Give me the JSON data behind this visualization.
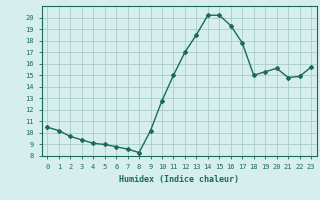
{
  "x": [
    0,
    1,
    2,
    3,
    4,
    5,
    6,
    7,
    8,
    9,
    10,
    11,
    12,
    13,
    14,
    15,
    16,
    17,
    18,
    19,
    20,
    21,
    22,
    23
  ],
  "y": [
    10.5,
    10.2,
    9.7,
    9.4,
    9.1,
    9.0,
    8.8,
    8.6,
    8.3,
    10.2,
    12.8,
    15.0,
    17.0,
    18.5,
    20.2,
    20.2,
    19.3,
    17.8,
    15.0,
    15.3,
    15.6,
    14.8,
    14.9,
    15.7
  ],
  "line_color": "#1a6b5a",
  "marker": "D",
  "marker_size": 2,
  "bg_color": "#d6eeee",
  "grid_color": "#aacccc",
  "xlabel": "Humidex (Indice chaleur)",
  "ylabel": "",
  "ylim": [
    8,
    21
  ],
  "xlim": [
    -0.5,
    23.5
  ],
  "yticks": [
    8,
    9,
    10,
    11,
    12,
    13,
    14,
    15,
    16,
    17,
    18,
    19,
    20
  ],
  "xticks": [
    0,
    1,
    2,
    3,
    4,
    5,
    6,
    7,
    8,
    9,
    10,
    11,
    12,
    13,
    14,
    15,
    16,
    17,
    18,
    19,
    20,
    21,
    22,
    23
  ]
}
